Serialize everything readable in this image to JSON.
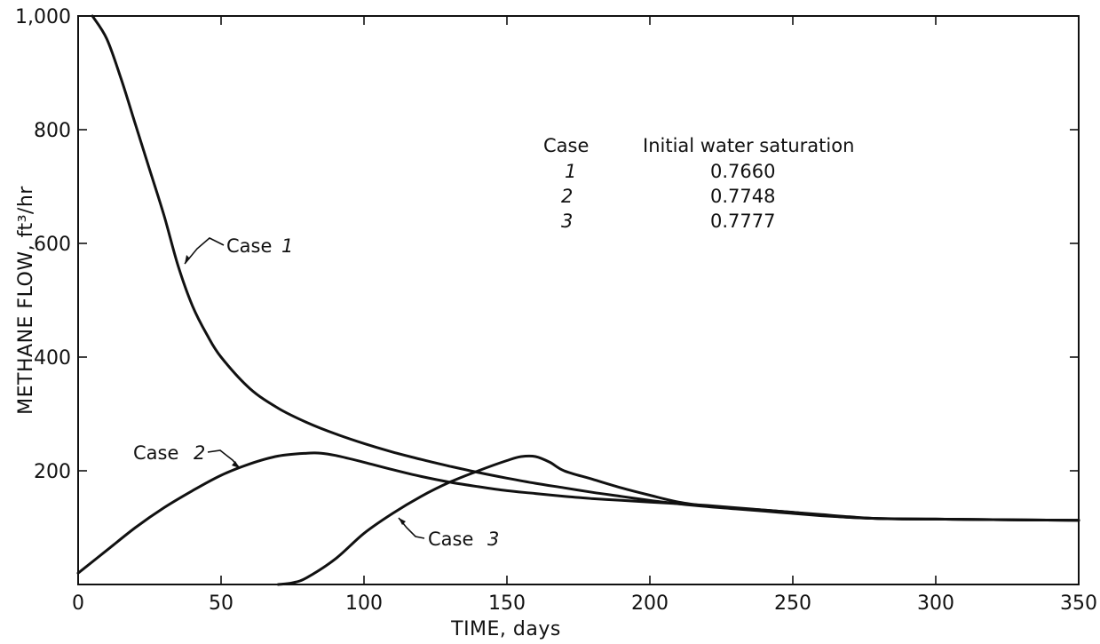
{
  "chart_data": {
    "type": "line",
    "xlabel": "TIME, days",
    "ylabel": "METHANE FLOW, ft³/hr",
    "xlim": [
      0,
      350
    ],
    "ylim": [
      0,
      1000
    ],
    "x_ticks": [
      0,
      50,
      100,
      150,
      200,
      250,
      300,
      350
    ],
    "x_tick_labels": [
      "0",
      "50",
      "100",
      "150",
      "200",
      "250",
      "300",
      "350"
    ],
    "y_ticks": [
      200,
      400,
      600,
      800,
      1000
    ],
    "y_tick_labels": [
      "200",
      "400",
      "600",
      "800",
      "1,000"
    ],
    "grid": false,
    "series": [
      {
        "name": "Case 1",
        "x": [
          5,
          10,
          15,
          20,
          25,
          30,
          35,
          40,
          45,
          50,
          60,
          70,
          80,
          90,
          100,
          110,
          120,
          130,
          140,
          150,
          160,
          170,
          180,
          190,
          200,
          210,
          220,
          230,
          240,
          250,
          260,
          270,
          280,
          290,
          300,
          320,
          350
        ],
        "y": [
          1000,
          960,
          890,
          810,
          730,
          650,
          560,
          490,
          440,
          400,
          345,
          310,
          285,
          265,
          248,
          233,
          220,
          208,
          197,
          187,
          178,
          170,
          162,
          155,
          148,
          142,
          137,
          133,
          129,
          125,
          121,
          118,
          116,
          115,
          115,
          114,
          113
        ]
      },
      {
        "name": "Case 2",
        "x": [
          0,
          10,
          20,
          30,
          40,
          50,
          60,
          70,
          80,
          85,
          90,
          100,
          110,
          120,
          130,
          140,
          150,
          160,
          170,
          180,
          190,
          200,
          210,
          220,
          230,
          240,
          250,
          260,
          270,
          280,
          300,
          320,
          350
        ],
        "y": [
          20,
          60,
          100,
          135,
          165,
          192,
          212,
          226,
          231,
          231,
          227,
          215,
          202,
          190,
          180,
          172,
          165,
          160,
          155,
          151,
          148,
          145,
          142,
          139,
          135,
          131,
          127,
          123,
          119,
          116,
          115,
          114,
          113
        ]
      },
      {
        "name": "Case 3",
        "x": [
          70,
          75,
          80,
          90,
          100,
          110,
          120,
          130,
          140,
          150,
          155,
          160,
          165,
          170,
          180,
          190,
          200,
          210,
          220,
          230,
          240,
          250,
          260,
          270,
          280,
          300,
          320,
          350
        ],
        "y": [
          0,
          3,
          12,
          45,
          90,
          125,
          155,
          180,
          200,
          218,
          225,
          225,
          215,
          200,
          185,
          170,
          157,
          145,
          138,
          134,
          131,
          127,
          122,
          118,
          116,
          115,
          114,
          113
        ]
      }
    ],
    "annotations": [
      {
        "text": "Case",
        "label": "1"
      },
      {
        "text": "Case",
        "label": "2"
      },
      {
        "text": "Case",
        "label": "3"
      }
    ],
    "table": {
      "headers": [
        "Case",
        "Initial water saturation"
      ],
      "rows": [
        [
          "1",
          "0.7660"
        ],
        [
          "2",
          "0.7748"
        ],
        [
          "3",
          "0.7777"
        ]
      ]
    }
  }
}
